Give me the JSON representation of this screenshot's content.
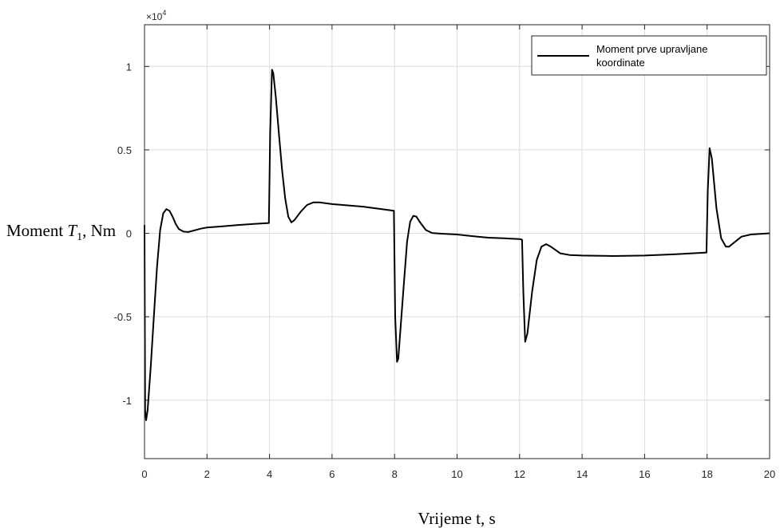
{
  "chart_data": {
    "type": "line",
    "title": "",
    "xlabel": "Vrijeme t, s",
    "ylabel_prefix": "Moment ",
    "ylabel_symbol": "T",
    "ylabel_subscript": "1",
    "ylabel_suffix": ", Nm",
    "y_exponent_prefix": "×10",
    "y_exponent_power": "4",
    "xlim": [
      0,
      20
    ],
    "ylim": [
      -13500,
      12500
    ],
    "x_ticks": [
      0,
      2,
      4,
      6,
      8,
      10,
      12,
      14,
      16,
      18,
      20
    ],
    "x_tick_labels": [
      "0",
      "2",
      "4",
      "6",
      "8",
      "10",
      "12",
      "14",
      "16",
      "18",
      "20"
    ],
    "y_ticks": [
      -10000,
      -5000,
      0,
      5000,
      10000
    ],
    "y_tick_labels": [
      "-1",
      "-0.5",
      "0",
      "0.5",
      "1"
    ],
    "grid": true,
    "legend_position": "top-right",
    "legend_lines": [
      "Moment prve upravljane",
      "koordinate"
    ],
    "series": [
      {
        "name": "Moment prve upravljane koordinate",
        "color": "#000000",
        "points": [
          [
            0.0,
            500
          ],
          [
            0.02,
            -10600
          ],
          [
            0.05,
            -11200
          ],
          [
            0.1,
            -10600
          ],
          [
            0.2,
            -8000
          ],
          [
            0.3,
            -5000
          ],
          [
            0.4,
            -2000
          ],
          [
            0.5,
            200
          ],
          [
            0.6,
            1200
          ],
          [
            0.7,
            1450
          ],
          [
            0.8,
            1350
          ],
          [
            0.9,
            1000
          ],
          [
            1.0,
            550
          ],
          [
            1.1,
            250
          ],
          [
            1.25,
            100
          ],
          [
            1.4,
            80
          ],
          [
            1.6,
            180
          ],
          [
            1.8,
            280
          ],
          [
            2.0,
            350
          ],
          [
            2.5,
            420
          ],
          [
            3.0,
            500
          ],
          [
            3.5,
            560
          ],
          [
            3.98,
            620
          ],
          [
            4.02,
            6000
          ],
          [
            4.08,
            9800
          ],
          [
            4.12,
            9600
          ],
          [
            4.2,
            8200
          ],
          [
            4.3,
            6000
          ],
          [
            4.4,
            3800
          ],
          [
            4.5,
            2100
          ],
          [
            4.6,
            1000
          ],
          [
            4.7,
            650
          ],
          [
            4.8,
            800
          ],
          [
            5.0,
            1300
          ],
          [
            5.2,
            1700
          ],
          [
            5.4,
            1850
          ],
          [
            5.6,
            1850
          ],
          [
            6.0,
            1750
          ],
          [
            7.0,
            1600
          ],
          [
            7.98,
            1350
          ],
          [
            8.02,
            -5000
          ],
          [
            8.08,
            -7700
          ],
          [
            8.12,
            -7500
          ],
          [
            8.2,
            -5500
          ],
          [
            8.3,
            -3000
          ],
          [
            8.4,
            -500
          ],
          [
            8.5,
            700
          ],
          [
            8.6,
            1050
          ],
          [
            8.7,
            1000
          ],
          [
            8.8,
            700
          ],
          [
            9.0,
            200
          ],
          [
            9.2,
            20
          ],
          [
            9.5,
            -20
          ],
          [
            10.0,
            -70
          ],
          [
            10.5,
            -170
          ],
          [
            11.0,
            -260
          ],
          [
            11.5,
            -300
          ],
          [
            11.8,
            -330
          ],
          [
            12.0,
            -340
          ],
          [
            12.08,
            -380
          ],
          [
            12.12,
            -3500
          ],
          [
            12.18,
            -6500
          ],
          [
            12.25,
            -6000
          ],
          [
            12.4,
            -3500
          ],
          [
            12.55,
            -1600
          ],
          [
            12.7,
            -800
          ],
          [
            12.85,
            -650
          ],
          [
            13.0,
            -800
          ],
          [
            13.3,
            -1200
          ],
          [
            13.6,
            -1300
          ],
          [
            14.0,
            -1330
          ],
          [
            15.0,
            -1360
          ],
          [
            16.0,
            -1330
          ],
          [
            17.0,
            -1250
          ],
          [
            17.98,
            -1150
          ],
          [
            18.02,
            2500
          ],
          [
            18.08,
            5100
          ],
          [
            18.15,
            4500
          ],
          [
            18.3,
            1500
          ],
          [
            18.45,
            -300
          ],
          [
            18.6,
            -800
          ],
          [
            18.7,
            -800
          ],
          [
            18.9,
            -500
          ],
          [
            19.1,
            -200
          ],
          [
            19.4,
            -70
          ],
          [
            19.7,
            -30
          ],
          [
            20.0,
            0
          ]
        ]
      }
    ]
  }
}
